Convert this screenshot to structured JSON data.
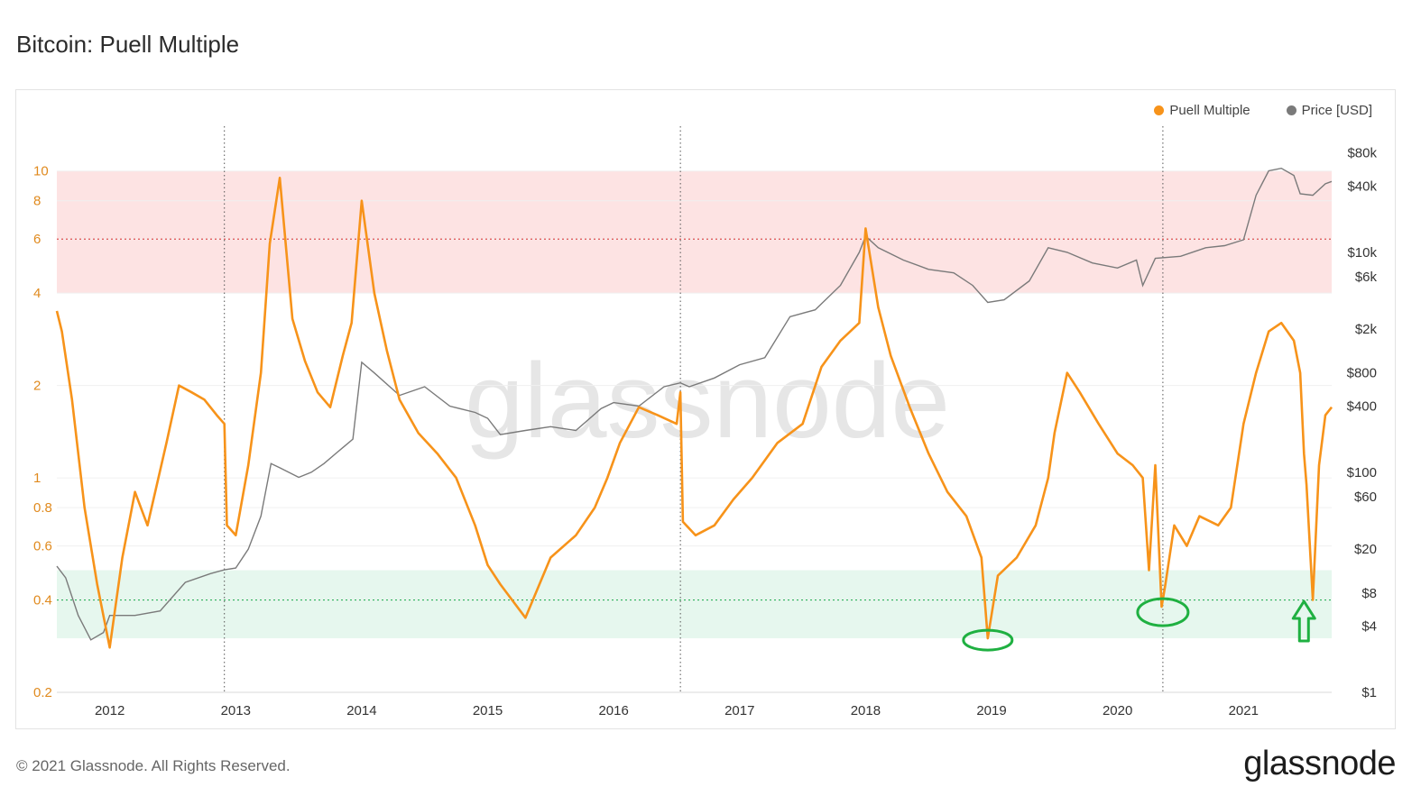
{
  "title": "Bitcoin: Puell Multiple",
  "footer": "© 2021 Glassnode. All Rights Reserved.",
  "brand": "glassnode",
  "watermark": "glassnode",
  "colors": {
    "puell": "#f7931a",
    "price": "#7a7a7a",
    "red_band": "#fde3e3",
    "green_band": "#e6f7ee",
    "marker": "#1fb041"
  },
  "chart_data": {
    "type": "line",
    "legend": [
      {
        "name": "Puell Multiple",
        "color": "#f7931a"
      },
      {
        "name": "Price [USD]",
        "color": "#7a7a7a"
      }
    ],
    "legend_position": "top-right",
    "x_ticks": [
      "2012",
      "2013",
      "2014",
      "2015",
      "2016",
      "2017",
      "2018",
      "2019",
      "2020",
      "2021"
    ],
    "y_left_ticks": [
      {
        "label": "10",
        "value": 10
      },
      {
        "label": "8",
        "value": 8
      },
      {
        "label": "6",
        "value": 6
      },
      {
        "label": "4",
        "value": 4
      },
      {
        "label": "2",
        "value": 2
      },
      {
        "label": "1",
        "value": 1
      },
      {
        "label": "0.8",
        "value": 0.8
      },
      {
        "label": "0.6",
        "value": 0.6
      },
      {
        "label": "0.4",
        "value": 0.4
      },
      {
        "label": "0.2",
        "value": 0.2
      }
    ],
    "y_right_ticks": [
      {
        "label": "$80k",
        "value": 80000
      },
      {
        "label": "$40k",
        "value": 40000
      },
      {
        "label": "$10k",
        "value": 10000
      },
      {
        "label": "$6k",
        "value": 6000
      },
      {
        "label": "$2k",
        "value": 2000
      },
      {
        "label": "$800",
        "value": 800
      },
      {
        "label": "$400",
        "value": 400
      },
      {
        "label": "$100",
        "value": 100
      },
      {
        "label": "$60",
        "value": 60
      },
      {
        "label": "$20",
        "value": 20
      },
      {
        "label": "$8",
        "value": 8
      },
      {
        "label": "$4",
        "value": 4
      },
      {
        "label": "$1",
        "value": 1
      }
    ],
    "y_left_scale": "log",
    "y_right_scale": "log",
    "y_left_range": [
      0.2,
      14
    ],
    "y_right_range": [
      1,
      140000
    ],
    "x_range": [
      2011.58,
      2021.7
    ],
    "bands": [
      {
        "from": 4,
        "to": 10,
        "color": "#fde3e3"
      },
      {
        "from": 0.3,
        "to": 0.5,
        "color": "#e6f7ee"
      }
    ],
    "reference_lines": [
      {
        "value": 6,
        "color": "#e05050"
      },
      {
        "value": 0.4,
        "color": "#2bb35a"
      }
    ],
    "vertical_markers": [
      2012.91,
      2016.53,
      2020.36
    ],
    "series": [
      {
        "name": "Puell Multiple",
        "x": [
          2011.58,
          2011.62,
          2011.7,
          2011.8,
          2011.9,
          2012.0,
          2012.1,
          2012.2,
          2012.3,
          2012.45,
          2012.55,
          2012.65,
          2012.75,
          2012.85,
          2012.91,
          2012.93,
          2013.0,
          2013.1,
          2013.2,
          2013.27,
          2013.35,
          2013.45,
          2013.55,
          2013.65,
          2013.75,
          2013.85,
          2013.92,
          2014.0,
          2014.1,
          2014.2,
          2014.3,
          2014.45,
          2014.6,
          2014.75,
          2014.9,
          2015.0,
          2015.1,
          2015.3,
          2015.5,
          2015.7,
          2015.85,
          2015.95,
          2016.05,
          2016.2,
          2016.35,
          2016.5,
          2016.53,
          2016.55,
          2016.65,
          2016.8,
          2016.95,
          2017.1,
          2017.3,
          2017.5,
          2017.65,
          2017.8,
          2017.95,
          2018.0,
          2018.1,
          2018.2,
          2018.35,
          2018.5,
          2018.65,
          2018.8,
          2018.92,
          2018.97,
          2019.05,
          2019.2,
          2019.35,
          2019.45,
          2019.5,
          2019.6,
          2019.7,
          2019.85,
          2020.0,
          2020.12,
          2020.2,
          2020.25,
          2020.3,
          2020.35,
          2020.38,
          2020.45,
          2020.55,
          2020.65,
          2020.8,
          2020.9,
          2021.0,
          2021.1,
          2021.2,
          2021.3,
          2021.4,
          2021.45,
          2021.48,
          2021.5,
          2021.55,
          2021.6,
          2021.65,
          2021.7
        ],
        "values": [
          3.5,
          3.0,
          1.8,
          0.8,
          0.45,
          0.28,
          0.55,
          0.9,
          0.7,
          1.3,
          2.0,
          1.9,
          1.8,
          1.6,
          1.5,
          0.7,
          0.65,
          1.1,
          2.2,
          5.8,
          9.5,
          3.3,
          2.4,
          1.9,
          1.7,
          2.5,
          3.2,
          8.0,
          4.0,
          2.6,
          1.8,
          1.4,
          1.2,
          1.0,
          0.7,
          0.52,
          0.45,
          0.35,
          0.55,
          0.65,
          0.8,
          1.0,
          1.3,
          1.7,
          1.6,
          1.5,
          1.9,
          0.72,
          0.65,
          0.7,
          0.85,
          1.0,
          1.3,
          1.5,
          2.3,
          2.8,
          3.2,
          6.5,
          3.6,
          2.5,
          1.7,
          1.2,
          0.9,
          0.75,
          0.55,
          0.3,
          0.48,
          0.55,
          0.7,
          1.0,
          1.4,
          2.2,
          1.9,
          1.5,
          1.2,
          1.1,
          1.0,
          0.5,
          1.1,
          0.38,
          0.45,
          0.7,
          0.6,
          0.75,
          0.7,
          0.8,
          1.5,
          2.2,
          3.0,
          3.2,
          2.8,
          2.2,
          1.2,
          0.95,
          0.4,
          1.1,
          1.6,
          1.7
        ]
      },
      {
        "name": "Price [USD]",
        "x": [
          2011.58,
          2011.65,
          2011.75,
          2011.85,
          2011.95,
          2012.0,
          2012.2,
          2012.4,
          2012.6,
          2012.8,
          2012.91,
          2013.0,
          2013.1,
          2013.2,
          2013.28,
          2013.35,
          2013.5,
          2013.6,
          2013.7,
          2013.8,
          2013.93,
          2014.0,
          2014.1,
          2014.3,
          2014.5,
          2014.7,
          2014.9,
          2015.0,
          2015.1,
          2015.3,
          2015.5,
          2015.7,
          2015.9,
          2016.0,
          2016.2,
          2016.4,
          2016.53,
          2016.6,
          2016.8,
          2017.0,
          2017.2,
          2017.4,
          2017.6,
          2017.8,
          2017.95,
          2018.0,
          2018.1,
          2018.3,
          2018.5,
          2018.7,
          2018.85,
          2018.97,
          2019.1,
          2019.3,
          2019.45,
          2019.6,
          2019.8,
          2020.0,
          2020.15,
          2020.2,
          2020.3,
          2020.5,
          2020.7,
          2020.85,
          2021.0,
          2021.1,
          2021.2,
          2021.3,
          2021.4,
          2021.45,
          2021.55,
          2021.65,
          2021.7
        ],
        "values": [
          14,
          11,
          5,
          3,
          3.5,
          5,
          5,
          5.5,
          10,
          12,
          13,
          13.5,
          20,
          40,
          120,
          110,
          90,
          100,
          120,
          150,
          200,
          1000,
          800,
          500,
          600,
          400,
          350,
          310,
          220,
          240,
          260,
          240,
          380,
          430,
          400,
          600,
          650,
          600,
          720,
          950,
          1100,
          2600,
          3000,
          5000,
          10000,
          14000,
          11000,
          8500,
          7000,
          6500,
          5000,
          3500,
          3700,
          5500,
          11000,
          10000,
          8000,
          7200,
          8500,
          5000,
          8800,
          9200,
          11000,
          11500,
          13000,
          33000,
          55000,
          58000,
          50000,
          34000,
          33000,
          42000,
          44000
        ]
      }
    ]
  }
}
